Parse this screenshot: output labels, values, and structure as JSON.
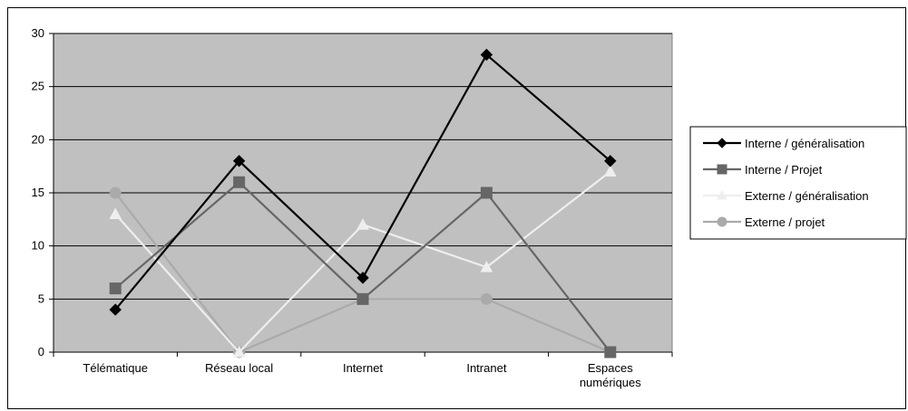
{
  "chart_data": {
    "type": "line",
    "categories": [
      "Télématique",
      "Réseau local",
      "Internet",
      "Intranet",
      "Espaces numériques"
    ],
    "category_lines": [
      [
        "Télématique"
      ],
      [
        "Réseau local"
      ],
      [
        "Internet"
      ],
      [
        "Intranet"
      ],
      [
        "Espaces",
        "numériques"
      ]
    ],
    "ylim": [
      0,
      30
    ],
    "yticks": [
      0,
      5,
      10,
      15,
      20,
      25,
      30
    ],
    "grid": true,
    "legend_position": "right",
    "plot_background": "#c0c0c0",
    "series": [
      {
        "name": "Interne / généralisation",
        "values": [
          4,
          18,
          7,
          28,
          18
        ],
        "color": "#000000",
        "marker": "diamond"
      },
      {
        "name": "Interne / Projet",
        "values": [
          6,
          16,
          5,
          15,
          0
        ],
        "color": "#666666",
        "marker": "square"
      },
      {
        "name": "Externe / généralisation",
        "values": [
          13,
          0,
          12,
          8,
          17
        ],
        "color": "#eeeeee",
        "marker": "triangle"
      },
      {
        "name": "Externe / projet",
        "values": [
          15,
          0,
          5,
          5,
          0
        ],
        "color": "#aaaaaa",
        "marker": "circle"
      }
    ]
  }
}
